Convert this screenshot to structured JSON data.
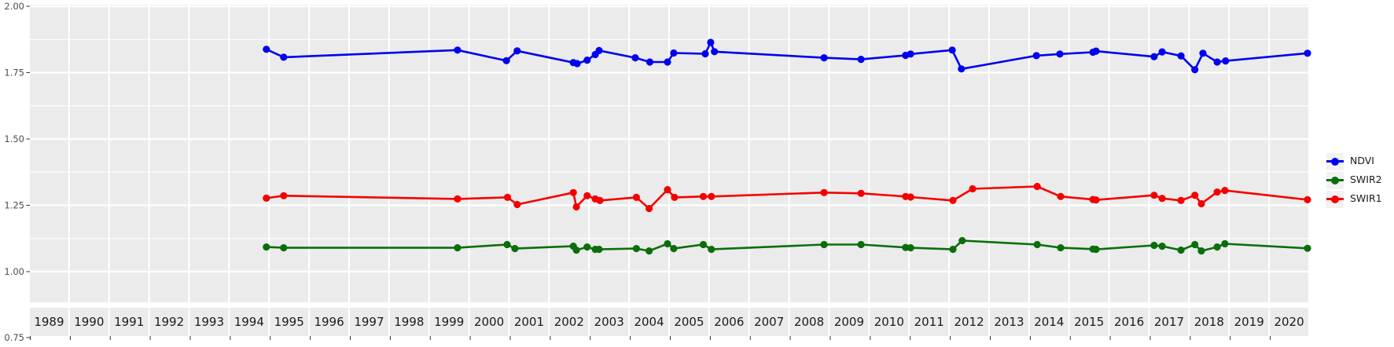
{
  "chart_data": {
    "type": "line",
    "title": "",
    "xlabel": "",
    "ylabel": "",
    "x_unit": "year (fractional part = position within year facet panel)",
    "ylim": [
      0.75,
      2.0
    ],
    "ytick_labels": [
      "2.00",
      "1.75",
      "1.50",
      "1.25",
      "1.00",
      "0.75"
    ],
    "ytick_values": [
      2.0,
      1.75,
      1.5,
      1.25,
      1.0,
      0.75
    ],
    "minor_ytick_values": [
      1.875,
      1.625,
      1.375,
      1.125
    ],
    "grid": "major and minor horizontal white gridlines on gray facet panels",
    "legend_position": "right",
    "panel_background": "#ebebeb",
    "grid_color": "#ffffff",
    "axis_text_color": "#4d4d4d",
    "strip_text_color": "#1a1a1a",
    "year_panels": [
      "1989",
      "1990",
      "1991",
      "1992",
      "1993",
      "1994",
      "1995",
      "1996",
      "1997",
      "1998",
      "1999",
      "2000",
      "2001",
      "2002",
      "2003",
      "2004",
      "2005",
      "2006",
      "2007",
      "2008",
      "2009",
      "2010",
      "2011",
      "2012",
      "2013",
      "2014",
      "2015",
      "2016",
      "2017",
      "2018",
      "2019",
      "2020"
    ],
    "series": [
      {
        "name": "NDVI",
        "color": "#0000f0",
        "points": [
          [
            1994.95,
            1.838
          ],
          [
            1995.36,
            1.808
          ],
          [
            1999.72,
            1.835
          ],
          [
            2000.95,
            1.795
          ],
          [
            2001.19,
            1.832
          ],
          [
            2002.61,
            1.788
          ],
          [
            2002.71,
            1.784
          ],
          [
            2002.97,
            1.797
          ],
          [
            2003.14,
            1.818
          ],
          [
            2003.24,
            1.833
          ],
          [
            2004.14,
            1.806
          ],
          [
            2004.52,
            1.79
          ],
          [
            2004.98,
            1.79
          ],
          [
            2005.1,
            1.824
          ],
          [
            2005.92,
            1.821
          ],
          [
            2006.02,
            1.864
          ],
          [
            2006.12,
            1.829
          ],
          [
            2008.89,
            1.806
          ],
          [
            2009.81,
            1.8
          ],
          [
            2010.93,
            1.815
          ],
          [
            2011.02,
            1.82
          ],
          [
            2012.06,
            1.835
          ],
          [
            2012.3,
            1.764
          ],
          [
            2014.17,
            1.814
          ],
          [
            2014.78,
            1.82
          ],
          [
            2015.6,
            1.827
          ],
          [
            2015.68,
            1.831
          ],
          [
            2017.11,
            1.81
          ],
          [
            2017.32,
            1.828
          ],
          [
            2017.81,
            1.813
          ],
          [
            2018.13,
            1.761
          ],
          [
            2018.34,
            1.823
          ],
          [
            2018.71,
            1.79
          ],
          [
            2018.93,
            1.794
          ],
          [
            2020.98,
            1.823
          ]
        ]
      },
      {
        "name": "SWIR2",
        "color": "#0b6e0b",
        "points": [
          [
            1994.95,
            1.093
          ],
          [
            1995.36,
            1.09
          ],
          [
            1999.72,
            1.09
          ],
          [
            2000.97,
            1.102
          ],
          [
            2001.13,
            1.087
          ],
          [
            2002.61,
            1.096
          ],
          [
            2002.69,
            1.081
          ],
          [
            2002.97,
            1.093
          ],
          [
            2003.14,
            1.084
          ],
          [
            2003.24,
            1.084
          ],
          [
            2004.17,
            1.087
          ],
          [
            2004.5,
            1.078
          ],
          [
            2004.98,
            1.105
          ],
          [
            2005.1,
            1.087
          ],
          [
            2005.87,
            1.102
          ],
          [
            2006.04,
            1.084
          ],
          [
            2008.89,
            1.102
          ],
          [
            2009.81,
            1.102
          ],
          [
            2010.93,
            1.091
          ],
          [
            2011.02,
            1.09
          ],
          [
            2012.08,
            1.084
          ],
          [
            2012.32,
            1.117
          ],
          [
            2014.19,
            1.102
          ],
          [
            2014.8,
            1.09
          ],
          [
            2015.6,
            1.085
          ],
          [
            2015.68,
            1.084
          ],
          [
            2017.11,
            1.099
          ],
          [
            2017.32,
            1.096
          ],
          [
            2017.81,
            1.081
          ],
          [
            2018.13,
            1.102
          ],
          [
            2018.3,
            1.078
          ],
          [
            2018.71,
            1.093
          ],
          [
            2018.91,
            1.105
          ],
          [
            2020.98,
            1.088
          ]
        ]
      },
      {
        "name": "SWIR1",
        "color": "#f50000",
        "points": [
          [
            1994.95,
            1.277
          ],
          [
            1995.36,
            1.286
          ],
          [
            1999.72,
            1.274
          ],
          [
            2000.98,
            1.28
          ],
          [
            2001.19,
            1.253
          ],
          [
            2002.61,
            1.298
          ],
          [
            2002.69,
            1.244
          ],
          [
            2002.97,
            1.286
          ],
          [
            2003.14,
            1.274
          ],
          [
            2003.26,
            1.268
          ],
          [
            2004.17,
            1.28
          ],
          [
            2004.5,
            1.238
          ],
          [
            2004.98,
            1.309
          ],
          [
            2005.12,
            1.28
          ],
          [
            2005.87,
            1.283
          ],
          [
            2006.04,
            1.283
          ],
          [
            2008.89,
            1.298
          ],
          [
            2009.81,
            1.295
          ],
          [
            2010.93,
            1.283
          ],
          [
            2011.02,
            1.281
          ],
          [
            2012.08,
            1.268
          ],
          [
            2012.59,
            1.312
          ],
          [
            2014.19,
            1.321
          ],
          [
            2014.8,
            1.283
          ],
          [
            2015.6,
            1.272
          ],
          [
            2015.68,
            1.27
          ],
          [
            2017.11,
            1.288
          ],
          [
            2017.32,
            1.276
          ],
          [
            2017.81,
            1.268
          ],
          [
            2018.13,
            1.288
          ],
          [
            2018.3,
            1.256
          ],
          [
            2018.71,
            1.3
          ],
          [
            2018.91,
            1.306
          ],
          [
            2020.98,
            1.271
          ]
        ]
      }
    ],
    "legend_order": [
      "NDVI",
      "SWIR2",
      "SWIR1"
    ]
  }
}
